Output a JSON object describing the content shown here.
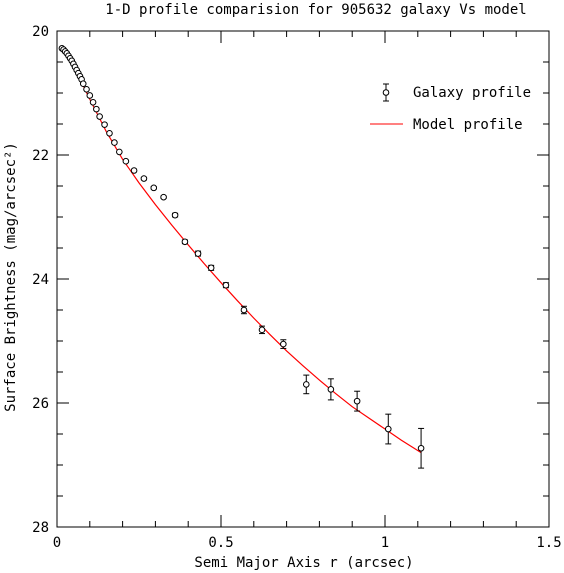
{
  "chart_data": {
    "type": "scatter",
    "title": "1-D profile comparision for 905632 galaxy Vs model",
    "xlabel": "Semi Major Axis r (arcsec)",
    "ylabel": "Surface Brightness (mag/arcsec²)",
    "xlim": [
      0,
      1.5
    ],
    "ylim": [
      20,
      28
    ],
    "y_inverted": true,
    "x_ticks": [
      "0",
      "0.5",
      "1",
      "1.5"
    ],
    "y_ticks": [
      "20",
      "22",
      "24",
      "26",
      "28"
    ],
    "legend_position": "top-right",
    "series": [
      {
        "name": "Galaxy profile",
        "marker": "open-circle",
        "color": "#000000",
        "x": [
          0.015,
          0.02,
          0.025,
          0.03,
          0.035,
          0.04,
          0.045,
          0.05,
          0.055,
          0.06,
          0.065,
          0.07,
          0.075,
          0.08,
          0.09,
          0.1,
          0.11,
          0.12,
          0.13,
          0.145,
          0.16,
          0.175,
          0.19,
          0.21,
          0.235,
          0.265,
          0.295,
          0.325,
          0.36,
          0.39,
          0.43,
          0.47,
          0.515,
          0.57,
          0.625,
          0.69,
          0.76,
          0.835,
          0.915,
          1.01,
          1.11
        ],
        "y": [
          20.28,
          20.3,
          20.33,
          20.36,
          20.4,
          20.44,
          20.48,
          20.53,
          20.58,
          20.63,
          20.68,
          20.73,
          20.78,
          20.85,
          20.94,
          21.04,
          21.15,
          21.26,
          21.38,
          21.51,
          21.65,
          21.8,
          21.95,
          22.1,
          22.25,
          22.38,
          22.53,
          22.68,
          22.97,
          23.4,
          23.59,
          23.82,
          24.1,
          24.5,
          24.82,
          25.05,
          25.7,
          25.78,
          25.97,
          26.42,
          26.73
        ],
        "yerr": [
          0.01,
          0.01,
          0.01,
          0.01,
          0.01,
          0.01,
          0.01,
          0.01,
          0.01,
          0.01,
          0.01,
          0.01,
          0.01,
          0.01,
          0.01,
          0.01,
          0.01,
          0.01,
          0.01,
          0.01,
          0.01,
          0.01,
          0.01,
          0.01,
          0.01,
          0.02,
          0.02,
          0.02,
          0.03,
          0.03,
          0.04,
          0.04,
          0.04,
          0.06,
          0.06,
          0.07,
          0.15,
          0.17,
          0.16,
          0.24,
          0.32
        ]
      },
      {
        "name": "Model profile",
        "marker": "line",
        "color": "#ff0000",
        "x": [
          0.01,
          0.03,
          0.05,
          0.08,
          0.1,
          0.15,
          0.2,
          0.25,
          0.3,
          0.35,
          0.4,
          0.45,
          0.5,
          0.55,
          0.6,
          0.65,
          0.7,
          0.75,
          0.8,
          0.85,
          0.9,
          0.95,
          1.0,
          1.05,
          1.11
        ],
        "y": [
          20.3,
          20.38,
          20.55,
          20.88,
          21.1,
          21.62,
          22.07,
          22.45,
          22.8,
          23.13,
          23.45,
          23.76,
          24.06,
          24.35,
          24.63,
          24.9,
          25.16,
          25.4,
          25.63,
          25.85,
          26.06,
          26.24,
          26.42,
          26.6,
          26.8
        ]
      }
    ]
  }
}
